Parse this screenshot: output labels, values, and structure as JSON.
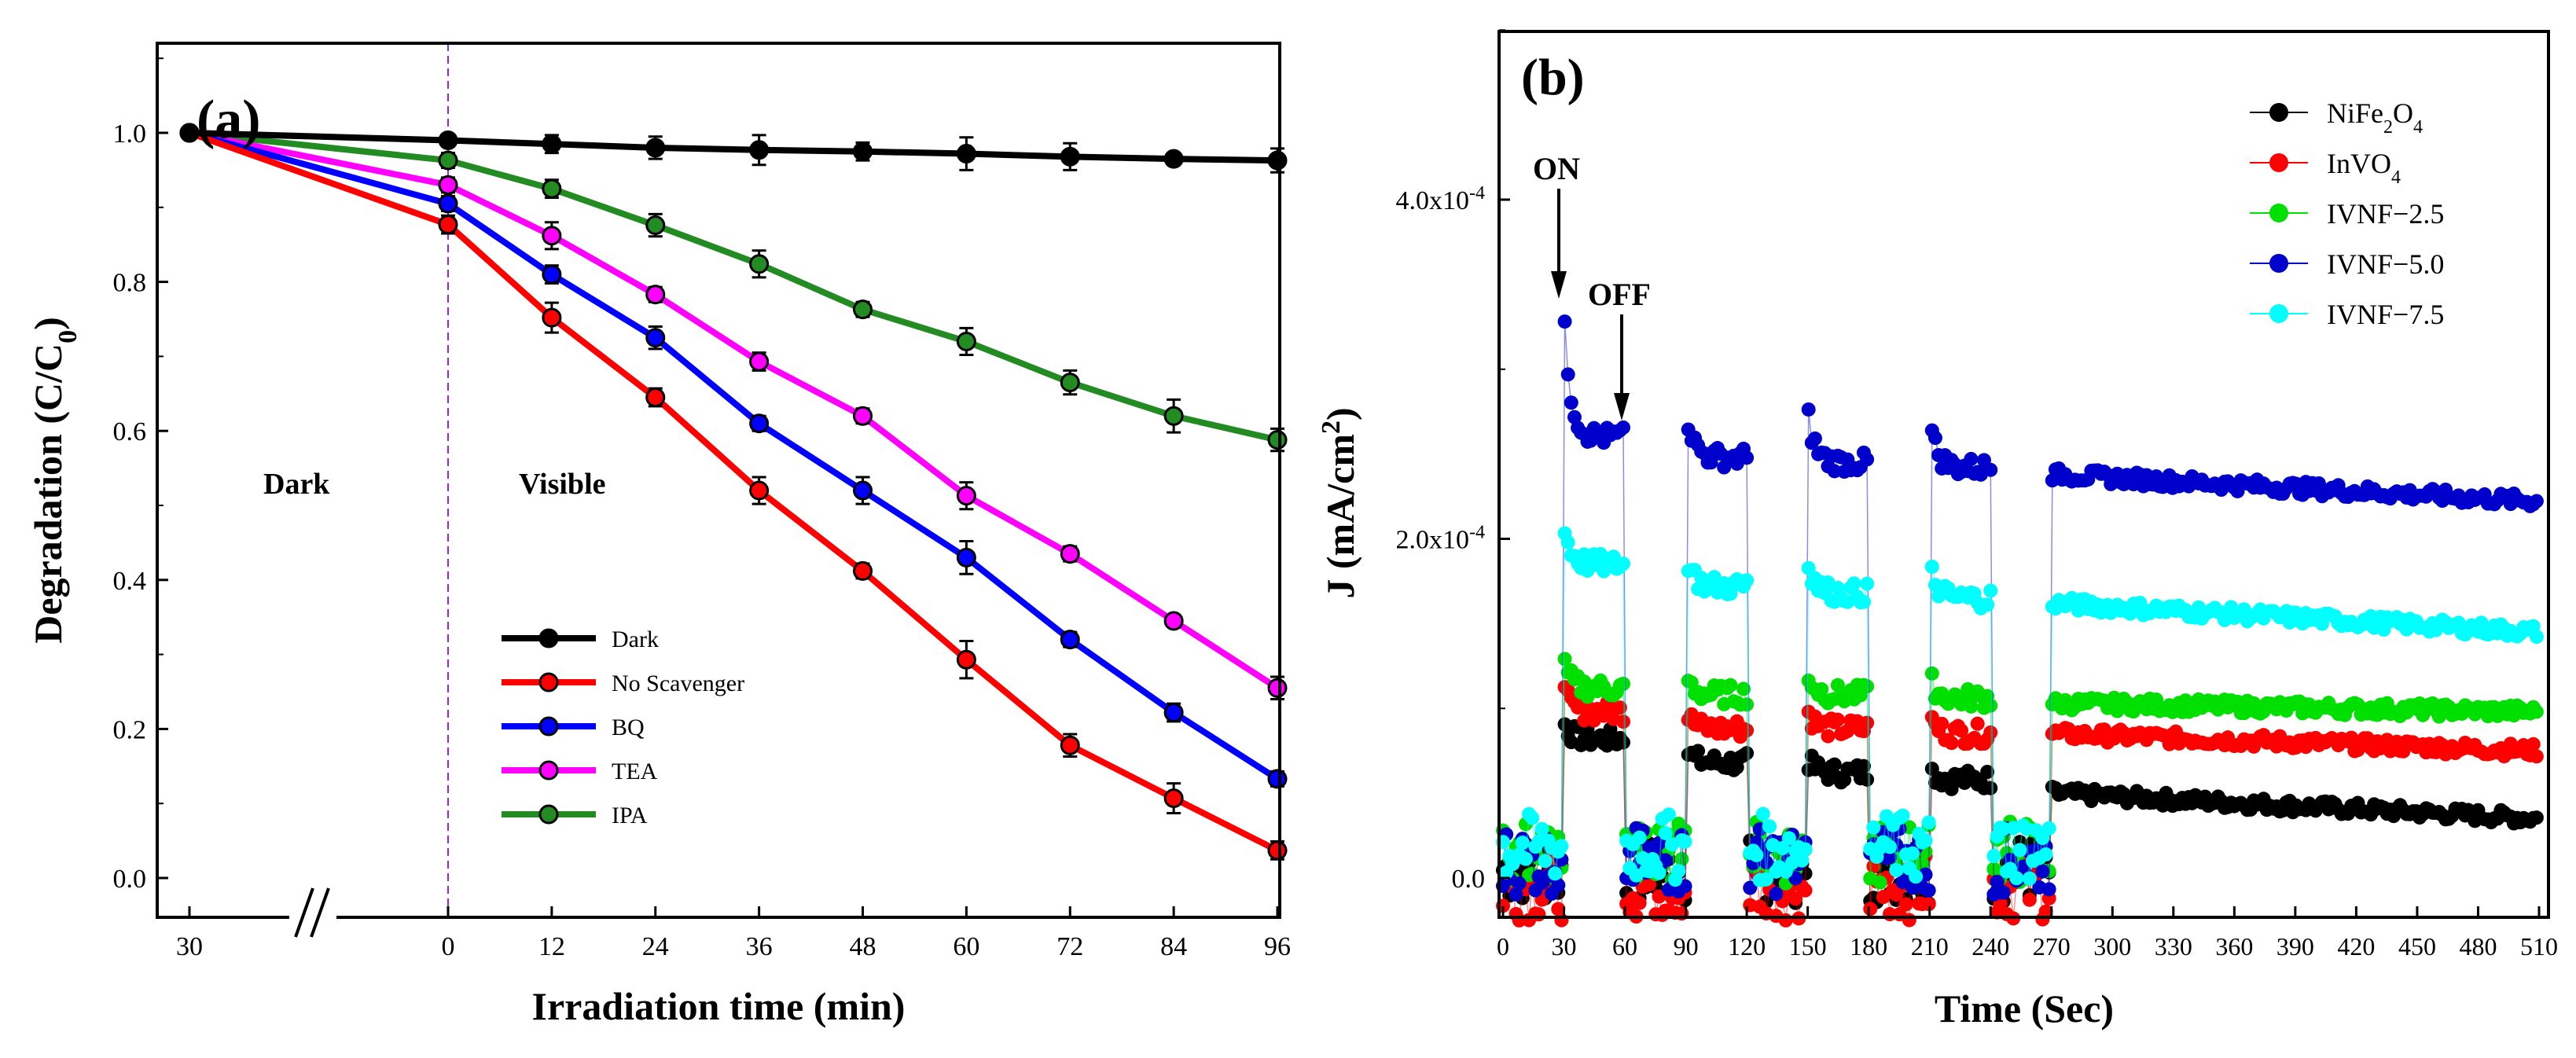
{
  "panel_a": {
    "label": "(a)",
    "ylabel": "Degradation (C/C",
    "ylabel_sub": "0",
    "ylabel_end": ")",
    "xlabel": "Irradiation time (min)",
    "annotation_dark": "Dark",
    "annotation_visible": "Visible",
    "break_mark": "//",
    "yticks": [
      "0.0",
      "0.2",
      "0.4",
      "0.6",
      "0.8",
      "1.0"
    ],
    "xticks": [
      "30",
      "0",
      "12",
      "24",
      "36",
      "48",
      "60",
      "72",
      "84",
      "96"
    ]
  },
  "panel_b": {
    "label": "(b)",
    "ylabel": "J (mA/cm",
    "ylabel_sup": "2",
    "ylabel_end": ")",
    "xlabel": "Time (Sec)",
    "annotation_on": "ON",
    "annotation_off": "OFF",
    "yticks": [
      {
        "base": "0.0",
        "exp": ""
      },
      {
        "base": "2.0x10",
        "exp": "-4"
      },
      {
        "base": "4.0x10",
        "exp": "-4"
      }
    ],
    "xticks": [
      "0",
      "30",
      "60",
      "90",
      "120",
      "150",
      "180",
      "210",
      "240",
      "270",
      "300",
      "330",
      "360",
      "390",
      "420",
      "450",
      "480",
      "510"
    ],
    "legend": [
      {
        "pre": "NiFe",
        "sub1": "2",
        "mid": "O",
        "sub2": "4"
      },
      {
        "pre": "InVO",
        "sub1": "4",
        "mid": "",
        "sub2": ""
      },
      {
        "pre": "IVNF",
        "sub1": "",
        "mid": "−2.5",
        "sub2": ""
      },
      {
        "pre": "IVNF",
        "sub1": "",
        "mid": "−5.0",
        "sub2": ""
      },
      {
        "pre": "IVNF",
        "sub1": "",
        "mid": "−7.5",
        "sub2": ""
      }
    ]
  },
  "chart_data": [
    {
      "type": "line",
      "panel": "(a)",
      "ylabel": "Degradation (C/C0)",
      "xlabel": "Irradiation time (min)",
      "ylim": [
        0.0,
        1.0
      ],
      "x": [
        -30,
        0,
        12,
        24,
        36,
        48,
        60,
        72,
        84,
        96
      ],
      "x_tick_labels": [
        "30",
        "0",
        "12",
        "24",
        "36",
        "48",
        "60",
        "72",
        "84",
        "96"
      ],
      "axis_break_between": [
        -30,
        0
      ],
      "dark_visible_divider": 0,
      "legend_position": "lower-center",
      "series": [
        {
          "name": "Dark",
          "color": "#000000",
          "values": [
            1.0,
            0.99,
            0.985,
            0.98,
            0.977,
            0.975,
            0.972,
            0.968,
            0.965,
            0.963
          ],
          "errors": [
            0,
            0.008,
            0.012,
            0.015,
            0.02,
            0.012,
            0.022,
            0.018,
            0.008,
            0.016
          ]
        },
        {
          "name": "No Scavenger",
          "color": "#ff0000",
          "values": [
            1.0,
            0.877,
            0.752,
            0.645,
            0.52,
            0.412,
            0.293,
            0.178,
            0.107,
            0.037
          ],
          "errors": [
            0,
            0.012,
            0.02,
            0.012,
            0.018,
            0.01,
            0.025,
            0.015,
            0.02,
            0.012
          ]
        },
        {
          "name": "BQ",
          "color": "#0000ff",
          "values": [
            1.0,
            0.905,
            0.81,
            0.725,
            0.61,
            0.52,
            0.43,
            0.32,
            0.222,
            0.133
          ],
          "errors": [
            0,
            0.01,
            0.012,
            0.015,
            0.01,
            0.018,
            0.022,
            0.01,
            0.012,
            0.01
          ]
        },
        {
          "name": "TEA",
          "color": "#ff00ff",
          "values": [
            1.0,
            0.93,
            0.862,
            0.783,
            0.693,
            0.62,
            0.513,
            0.435,
            0.345,
            0.255
          ],
          "errors": [
            0,
            0.01,
            0.018,
            0.01,
            0.012,
            0.01,
            0.018,
            0.01,
            0.008,
            0.015
          ]
        },
        {
          "name": "IPA",
          "color": "#228b22",
          "values": [
            1.0,
            0.963,
            0.925,
            0.876,
            0.824,
            0.763,
            0.72,
            0.665,
            0.62,
            0.588
          ],
          "errors": [
            0,
            0.01,
            0.012,
            0.015,
            0.018,
            0.01,
            0.018,
            0.016,
            0.022,
            0.015
          ]
        }
      ]
    },
    {
      "type": "scatter",
      "panel": "(b)",
      "ylabel": "J (mA/cm2)",
      "xlabel": "Time (Sec)",
      "xlim": [
        0,
        510
      ],
      "ylim": [
        -2.5e-05,
        0.0005
      ],
      "light_on_periods": [
        [
          30,
          60
        ],
        [
          90,
          120
        ],
        [
          150,
          180
        ],
        [
          210,
          240
        ],
        [
          270,
          510
        ]
      ],
      "legend_position": "top-right",
      "series": [
        {
          "name": "NiFe2O4",
          "color": "#000000",
          "dark": 5e-06,
          "light": [
            8.2e-05,
            6.8e-05,
            6.2e-05,
            5.8e-05,
            5e-05
          ],
          "light_end": 3.5e-05
        },
        {
          "name": "InVO4",
          "color": "#ff0000",
          "dark": -5e-06,
          "light": [
            9.8e-05,
            8.8e-05,
            8.8e-05,
            8.5e-05,
            8.5e-05
          ],
          "light_end": 7.5e-05
        },
        {
          "name": "IVNF−2.5",
          "color": "#00e000",
          "dark": 1.5e-05,
          "light": [
            0.000112,
            0.000108,
            0.000108,
            0.000106,
            0.000103
          ],
          "light_end": 9.8e-05
        },
        {
          "name": "IVNF−5.0",
          "color": "#0000cc",
          "dark": 1e-05,
          "light": [
            0.00026,
            0.000248,
            0.000245,
            0.000242,
            0.000238
          ],
          "light_end": 0.000222,
          "light_spike": 0.00033
        },
        {
          "name": "IVNF−7.5",
          "color": "#00ffff",
          "dark": 1.8e-05,
          "light": [
            0.000185,
            0.000172,
            0.000168,
            0.000165,
            0.000162
          ],
          "light_end": 0.000145
        }
      ]
    }
  ]
}
